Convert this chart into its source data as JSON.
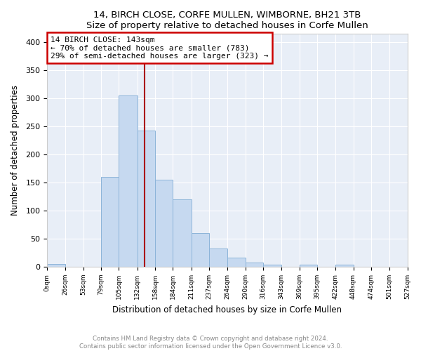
{
  "title": "14, BIRCH CLOSE, CORFE MULLEN, WIMBORNE, BH21 3TB",
  "subtitle": "Size of property relative to detached houses in Corfe Mullen",
  "xlabel": "Distribution of detached houses by size in Corfe Mullen",
  "ylabel": "Number of detached properties",
  "annotation_line1": "14 BIRCH CLOSE: 143sqm",
  "annotation_line2": "← 70% of detached houses are smaller (783)",
  "annotation_line3": "29% of semi-detached houses are larger (323) →",
  "bar_edges": [
    0,
    26,
    53,
    79,
    105,
    132,
    158,
    184,
    211,
    237,
    264,
    290,
    316,
    343,
    369,
    395,
    422,
    448,
    474,
    501,
    527
  ],
  "bin_labels": [
    "0sqm",
    "26sqm",
    "53sqm",
    "79sqm",
    "105sqm",
    "132sqm",
    "158sqm",
    "184sqm",
    "211sqm",
    "237sqm",
    "264sqm",
    "290sqm",
    "316sqm",
    "343sqm",
    "369sqm",
    "395sqm",
    "422sqm",
    "448sqm",
    "474sqm",
    "501sqm",
    "527sqm"
  ],
  "counts": [
    5,
    0,
    0,
    160,
    305,
    243,
    155,
    120,
    60,
    33,
    16,
    8,
    4,
    0,
    4,
    0,
    4,
    0,
    0,
    0
  ],
  "bar_color": "#c6d9f0",
  "bar_edge_color": "#8cb4d9",
  "vline_color": "#aa0000",
  "vline_x": 143,
  "annotation_box_color": "#cc0000",
  "footer_line1": "Contains HM Land Registry data © Crown copyright and database right 2024.",
  "footer_line2": "Contains public sector information licensed under the Open Government Licence v3.0.",
  "ylim": [
    0,
    415
  ],
  "yticks": [
    0,
    50,
    100,
    150,
    200,
    250,
    300,
    350,
    400
  ],
  "bg_color": "#e8eef7"
}
